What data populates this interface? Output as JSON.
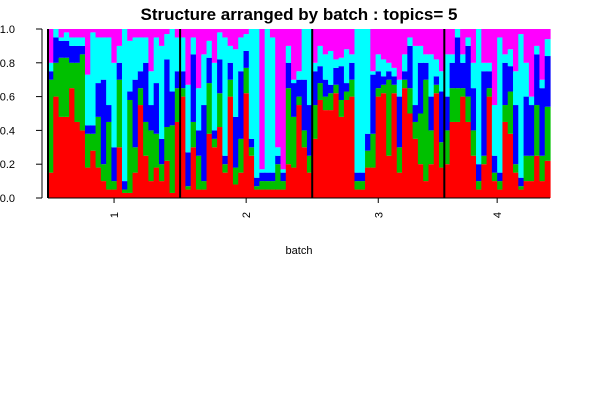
{
  "chart_data": {
    "type": "bar",
    "stacked": true,
    "title": "Structure arranged by batch : topics= 5",
    "xlabel": "batch",
    "ylabel": "",
    "ylim": [
      0,
      1
    ],
    "yticks": [
      "0.0",
      "0.2",
      "0.4",
      "0.6",
      "0.8",
      "1.0"
    ],
    "groups": [
      "1",
      "2",
      "3",
      "4"
    ],
    "group_sizes": [
      25,
      25,
      25,
      20
    ],
    "series": [
      {
        "color": "#ff0000",
        "values": [
          0.15,
          0.6,
          0.48,
          0.48,
          0.65,
          0.45,
          0.4,
          0.18,
          0.28,
          0.18,
          0.1,
          0.05,
          0.05,
          0.3,
          0.03,
          0.03,
          0.15,
          0.55,
          0.25,
          0.1,
          0.18,
          0.1,
          0.22,
          0.03,
          0.45,
          0.6,
          0.05,
          0.3,
          0.05,
          0.05,
          0.38,
          0.3,
          0.42,
          0.15,
          0.6,
          0.08,
          0.15,
          0.62,
          0.25,
          0.05,
          0.05,
          0.05,
          0.05,
          0.05,
          0.05,
          0.2,
          0.18,
          0.55,
          0.3,
          0.15,
          0.35,
          0.58,
          0.52,
          0.52,
          0.62,
          0.48,
          0.58,
          0.6,
          0.05,
          0.05,
          0.18,
          0.18,
          0.6,
          0.62,
          0.25,
          0.62,
          0.15,
          0.65,
          0.5,
          0.35,
          0.2,
          0.1,
          0.2,
          0.62,
          0.18,
          0.2,
          0.45,
          0.45,
          0.6,
          0.45,
          0.25,
          0.05,
          0.2,
          0.6,
          0.1,
          0.05,
          0.45,
          0.38,
          0.15,
          0.05,
          0.1,
          0.1,
          0.25,
          0.1,
          0.22
        ]
      },
      {
        "color": "#00c000",
        "values": [
          0.55,
          0.2,
          0.35,
          0.35,
          0.15,
          0.35,
          0.45,
          0.2,
          0.1,
          0.3,
          0.1,
          0.4,
          0.05,
          0.4,
          0.02,
          0.55,
          0.15,
          0.1,
          0.2,
          0.3,
          0.2,
          0.1,
          0.2,
          0.4,
          0.2,
          0.05,
          0.02,
          0.15,
          0.2,
          0.05,
          0.3,
          0.05,
          0.2,
          0.05,
          0.1,
          0.1,
          0.2,
          0.15,
          0.05,
          0.02,
          0.05,
          0.05,
          0.05,
          0.15,
          0.05,
          0.45,
          0.3,
          0.05,
          0.1,
          0.1,
          0.2,
          0.1,
          0.08,
          0.1,
          0.05,
          0.1,
          0.05,
          0.1,
          0.05,
          0.05,
          0.1,
          0.2,
          0.05,
          0.05,
          0.45,
          0.05,
          0.15,
          0.05,
          0.15,
          0.1,
          0.3,
          0.6,
          0.2,
          0.05,
          0.15,
          0.2,
          0.2,
          0.2,
          0.05,
          0.15,
          0.15,
          0.05,
          0.05,
          0.05,
          0.05,
          0.05,
          0.1,
          0.25,
          0.05,
          0.02,
          0.15,
          0.15,
          0.3,
          0.15,
          0.32
        ]
      },
      {
        "color": "#0000ff",
        "values": [
          0.05,
          0.15,
          0.1,
          0.1,
          0.1,
          0.1,
          0.05,
          0.05,
          0.05,
          0.2,
          0.5,
          0.1,
          0.2,
          0.1,
          0.05,
          0.05,
          0.4,
          0.1,
          0.35,
          0.15,
          0.3,
          0.15,
          0.4,
          0.2,
          0.1,
          0.1,
          0.2,
          0.4,
          0.15,
          0.45,
          0.15,
          0.05,
          0.2,
          0.05,
          0.1,
          0.3,
          0.4,
          0.1,
          0.05,
          0.05,
          0.05,
          0.05,
          0.05,
          0.05,
          0.05,
          0.15,
          0.2,
          0.1,
          0.3,
          0.3,
          0.2,
          0.1,
          0.1,
          0.05,
          0.1,
          0.2,
          0.05,
          0.1,
          0.05,
          0.05,
          0.1,
          0.35,
          0.1,
          0.05,
          0.05,
          0.05,
          0.3,
          0.05,
          0.25,
          0.1,
          0.3,
          0.1,
          0.2,
          0.05,
          0.3,
          0.2,
          0.15,
          0.3,
          0.15,
          0.3,
          0.25,
          0.1,
          0.5,
          0.1,
          0.1,
          0.05,
          0.25,
          0.15,
          0.35,
          0.05,
          0.35,
          0.3,
          0.3,
          0.4,
          0.3
        ]
      },
      {
        "color": "#00ffff",
        "values": [
          0.05,
          0.05,
          0.02,
          0.05,
          0.05,
          0.05,
          0.05,
          0.3,
          0.55,
          0.27,
          0.25,
          0.4,
          0.5,
          0.1,
          0.9,
          0.3,
          0.25,
          0.2,
          0.15,
          0.2,
          0.27,
          0.55,
          0.15,
          0.37,
          0.2,
          0.2,
          0.4,
          0.1,
          0.25,
          0.3,
          0.1,
          0.4,
          0.16,
          0.7,
          0.1,
          0.4,
          0.2,
          0.1,
          0.65,
          0.88,
          0.02,
          0.85,
          0.8,
          0.05,
          0.02,
          0.1,
          0.02,
          0.05,
          0.3,
          0.45,
          0.05,
          0.12,
          0.15,
          0.2,
          0.05,
          0.05,
          0.2,
          0.05,
          0.85,
          0.85,
          0.62,
          0.02,
          0.1,
          0.1,
          0.05,
          0.05,
          0.1,
          0.1,
          0.05,
          0.35,
          0.1,
          0.05,
          0.25,
          0.1,
          0.12,
          0.25,
          0.05,
          0.05,
          0.05,
          0.05,
          0.15,
          0.8,
          0.05,
          0.05,
          0.3,
          0.8,
          0.05,
          0.1,
          0.2,
          0.85,
          0.2,
          0.05,
          0.05,
          0.05,
          0.1
        ]
      },
      {
        "color": "#ff00ff",
        "values": [
          0.2,
          0.0,
          0.05,
          0.02,
          0.05,
          0.05,
          0.05,
          0.27,
          0.02,
          0.05,
          0.05,
          0.05,
          0.2,
          0.1,
          0.0,
          0.07,
          0.05,
          0.05,
          0.05,
          0.25,
          0.05,
          0.1,
          0.03,
          0.0,
          0.05,
          0.05,
          0.33,
          0.05,
          0.35,
          0.15,
          0.07,
          0.2,
          0.02,
          0.05,
          0.1,
          0.12,
          0.05,
          0.03,
          0.0,
          0.0,
          0.83,
          0.0,
          0.05,
          0.7,
          0.83,
          0.1,
          0.3,
          0.25,
          0.0,
          0.0,
          0.2,
          0.1,
          0.15,
          0.13,
          0.18,
          0.17,
          0.12,
          0.15,
          0.0,
          0.0,
          0.0,
          0.25,
          0.15,
          0.18,
          0.2,
          0.23,
          0.3,
          0.15,
          0.05,
          0.1,
          0.1,
          0.15,
          0.15,
          0.18,
          0.25,
          0.15,
          0.15,
          0.0,
          0.15,
          0.05,
          0.2,
          0.0,
          0.2,
          0.2,
          0.45,
          0.05,
          0.15,
          0.12,
          0.25,
          0.03,
          0.2,
          0.4,
          0.1,
          0.3,
          0.06
        ]
      }
    ]
  }
}
